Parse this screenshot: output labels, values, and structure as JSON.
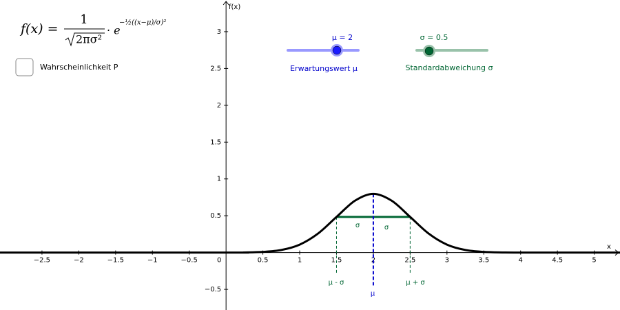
{
  "formula": {
    "lhs": "f(x) =",
    "numerator": "1",
    "denominator": "2πσ²",
    "base": "· e",
    "exponent": "−½((x−μ)/σ)²"
  },
  "checkbox_label": "Wahrscheinlichkeit P",
  "sliders": [
    {
      "value_text": "μ = 2",
      "caption": "Erwartungswert μ"
    },
    {
      "value_text": "σ = 0.5",
      "caption": "Standardabweichung σ"
    }
  ],
  "chart_data": {
    "type": "line",
    "x_label": "x",
    "y_label": "f(x)",
    "mu": 2,
    "sigma": 0.5,
    "x": [
      -3.1,
      0,
      0.25,
      0.5,
      0.75,
      1,
      1.25,
      1.5,
      1.75,
      2,
      2.25,
      2.5,
      2.75,
      3,
      3.25,
      3.5,
      3.75,
      4,
      5.4
    ],
    "series": [
      {
        "name": "f",
        "color": "#000000",
        "values": [
          0,
          0.0003,
          0.0017,
          0.0089,
          0.035,
          0.108,
          0.259,
          0.484,
          0.704,
          0.798,
          0.704,
          0.484,
          0.259,
          0.108,
          0.035,
          0.0089,
          0.0017,
          0.0003,
          0
        ]
      }
    ],
    "xlim": [
      -3.07,
      5.35
    ],
    "ylim": [
      -0.78,
      3.43
    ],
    "xticks": [
      {
        "value": -2.5,
        "label": "−2.5"
      },
      {
        "value": -2,
        "label": "−2"
      },
      {
        "value": -1.5,
        "label": "−1.5"
      },
      {
        "value": -1,
        "label": "−1"
      },
      {
        "value": -0.5,
        "label": "−0.5"
      },
      0,
      0.5,
      1,
      1.5,
      2,
      2.5,
      3,
      3.5,
      4,
      4.5,
      5
    ],
    "yticks": [
      {
        "value": -0.5,
        "label": "−0.5"
      },
      0.5,
      1,
      1.5,
      2,
      2.5,
      3
    ],
    "annotations": [
      "σ",
      "σ",
      "μ - σ",
      "μ + σ",
      "μ"
    ],
    "mu_color": "#0000cc",
    "sigma_color": "#006633"
  }
}
